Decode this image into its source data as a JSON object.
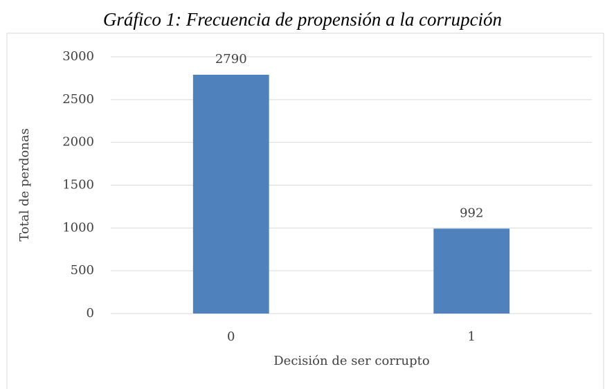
{
  "chart_data": {
    "type": "bar",
    "title": "Gráfico 1: Frecuencia de propensión a la corrupción",
    "x_label": "Decisión de ser corrupto",
    "y_label": "Total de perdonas",
    "categories": [
      "0",
      "1"
    ],
    "values": [
      2790,
      992
    ],
    "color": "#4f81bd",
    "ylim": [
      0,
      3000
    ],
    "yticks": [
      0,
      500,
      1000,
      1500,
      2000,
      2500,
      3000
    ],
    "grid": true
  }
}
